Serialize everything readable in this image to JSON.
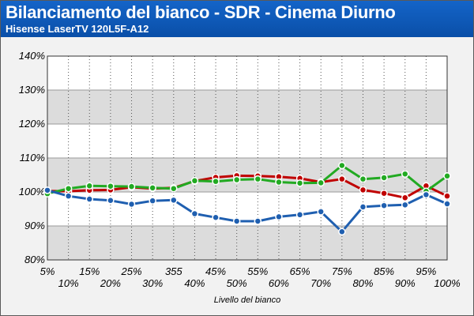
{
  "header": {
    "title": "Bilanciamento del bianco - SDR - Cinema Diurno",
    "subtitle": "Hisense LaserTV 120L5F-A12"
  },
  "colors": {
    "header_bg": "#0f5abb",
    "red": "#c00000",
    "green": "#22aa22",
    "blue": "#1f5fb0"
  },
  "chart_data": {
    "type": "line",
    "xlabel": "Livello del bianco",
    "ylabel": "",
    "categories": [
      "5%",
      "10%",
      "15%",
      "20%",
      "25%",
      "30%",
      "355",
      "40%",
      "45%",
      "50%",
      "55%",
      "60%",
      "65%",
      "70%",
      "75%",
      "80%",
      "85%",
      "90%",
      "95%",
      "100%"
    ],
    "y_ticks": [
      "80%",
      "90%",
      "100%",
      "110%",
      "120%",
      "130%",
      "140%"
    ],
    "ylim": [
      80,
      140
    ],
    "grid": true,
    "series": [
      {
        "color": "red",
        "values": [
          100.3,
          100.2,
          100.5,
          100.6,
          101.4,
          101.0,
          101.2,
          103.2,
          104.3,
          104.8,
          104.7,
          104.5,
          104.0,
          102.9,
          103.8,
          100.6,
          99.6,
          98.3,
          101.8,
          98.8
        ]
      },
      {
        "color": "green",
        "values": [
          99.5,
          101.0,
          101.8,
          101.7,
          101.6,
          101.2,
          101.0,
          103.3,
          103.1,
          103.6,
          103.8,
          102.9,
          102.6,
          102.7,
          107.8,
          103.8,
          104.2,
          105.3,
          100.2,
          104.7
        ]
      },
      {
        "color": "blue",
        "values": [
          100.5,
          98.8,
          97.9,
          97.5,
          96.4,
          97.4,
          97.6,
          93.6,
          92.5,
          91.4,
          91.4,
          92.7,
          93.3,
          94.2,
          88.3,
          95.6,
          96.0,
          96.2,
          99.2,
          96.5
        ]
      }
    ]
  }
}
